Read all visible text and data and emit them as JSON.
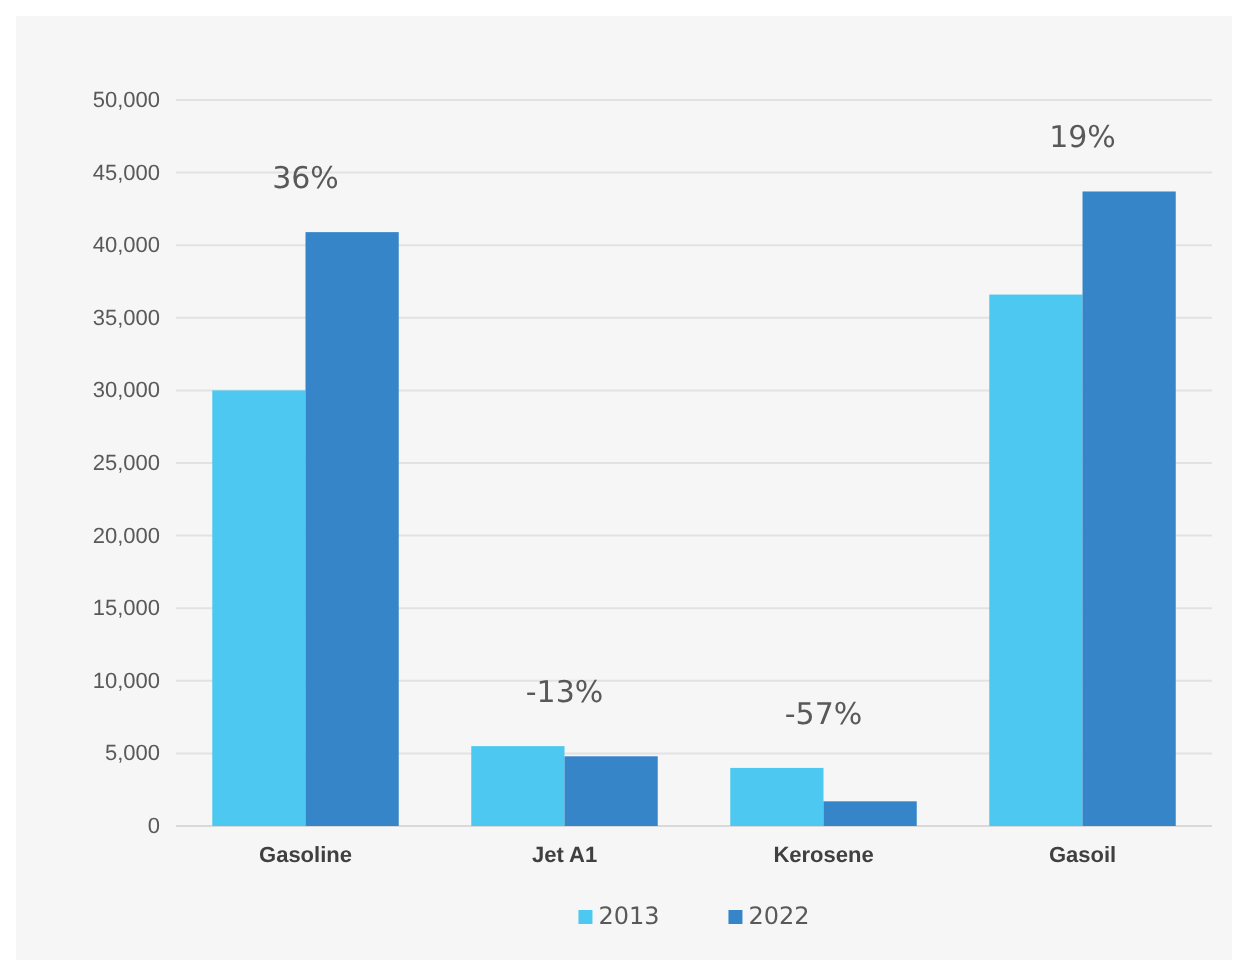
{
  "chart_data": {
    "type": "bar",
    "categories": [
      "Gasoline",
      "Jet A1",
      "Kerosene",
      "Gasoil"
    ],
    "series": [
      {
        "name": "2013",
        "color": "#4dc8f0",
        "values": [
          30000,
          5500,
          4000,
          36600
        ]
      },
      {
        "name": "2022",
        "color": "#3585c8",
        "values": [
          40900,
          4800,
          1700,
          43700
        ]
      }
    ],
    "ylim": [
      0,
      50000
    ],
    "yticks": [
      {
        "value": 0,
        "label": "0"
      },
      {
        "value": 5000,
        "label": "5,000"
      },
      {
        "value": 10000,
        "label": "10,000"
      },
      {
        "value": 15000,
        "label": "15,000"
      },
      {
        "value": 20000,
        "label": "20,000"
      },
      {
        "value": 25000,
        "label": "25,000"
      },
      {
        "value": 30000,
        "label": "30,000"
      },
      {
        "value": 35000,
        "label": "35,000"
      },
      {
        "value": 40000,
        "label": "40,000"
      },
      {
        "value": 45000,
        "label": "45,000"
      },
      {
        "value": 50000,
        "label": "50,000"
      }
    ],
    "grid": "y",
    "legend": "bottom",
    "annotations": [
      {
        "text": "36%",
        "x": "Gasoline",
        "y": 40900
      },
      {
        "text": "-13%",
        "x": "Jet A1",
        "y": 5500
      },
      {
        "text": "-57%",
        "x": "Kerosene",
        "y": 4000
      },
      {
        "text": "19%",
        "x": "Gasoil",
        "y": 43700
      }
    ]
  }
}
